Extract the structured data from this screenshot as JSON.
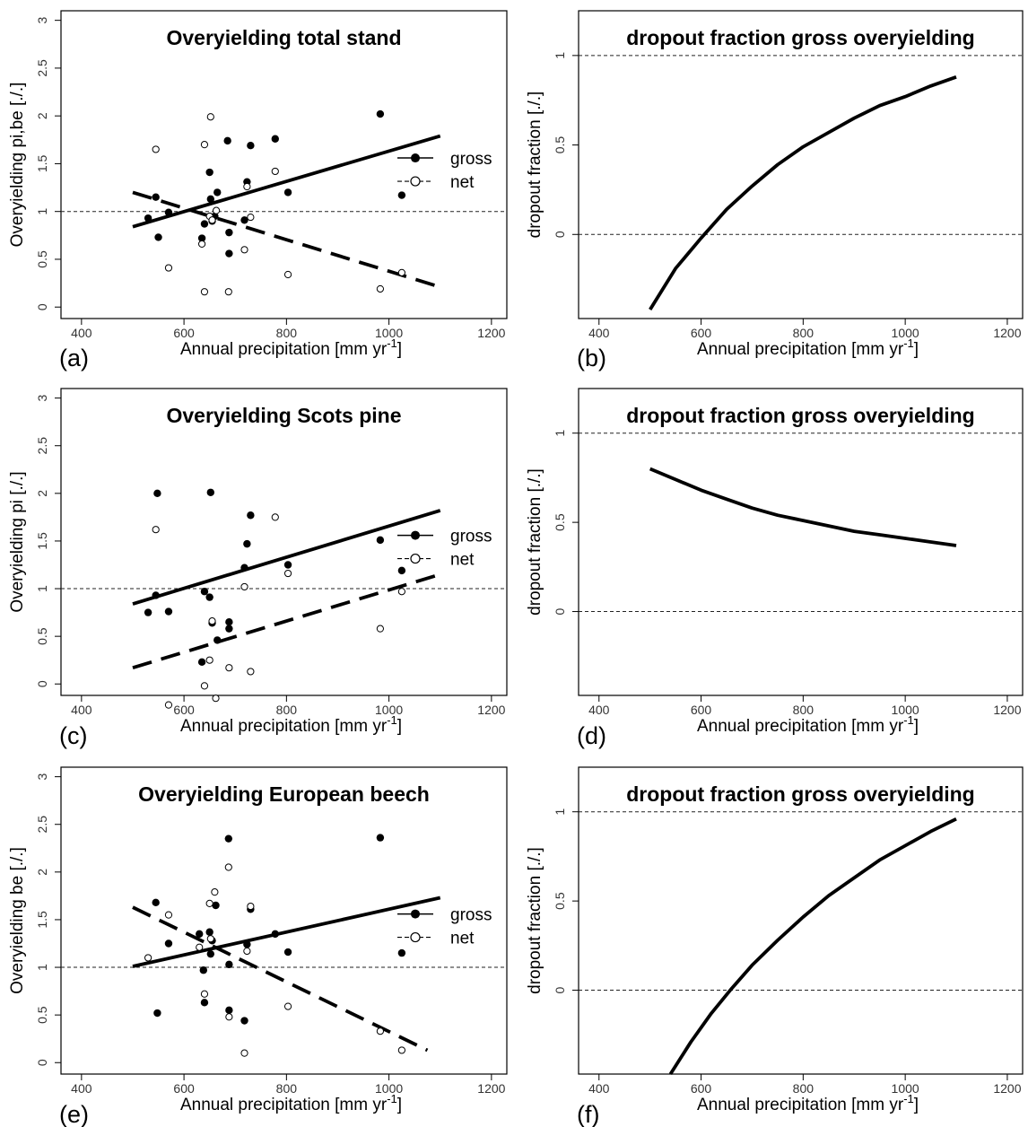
{
  "figure": {
    "xlabel": "Annual precipitation [mm yr",
    "xlabel_sup": "-1",
    "xlabel_end": "]",
    "legend": {
      "gross": "gross",
      "net": "net"
    }
  },
  "chart_data": [
    {
      "panel": "(a)",
      "type": "scatter",
      "title": "Overyielding total stand",
      "ylabel": "Overyielding pi,be [./.]",
      "xlim": [
        360,
        1230
      ],
      "ylim": [
        -0.12,
        3.1
      ],
      "xticks": [
        400,
        600,
        800,
        1000,
        1200
      ],
      "yticks": [
        0.0,
        0.5,
        1.0,
        1.5,
        2.0,
        2.5,
        3.0
      ],
      "reference_line": 1.0,
      "legend_position": "right",
      "series": [
        {
          "name": "gross",
          "marker": "filled-circle",
          "x": [
            530,
            545,
            550,
            570,
            635,
            640,
            650,
            652,
            655,
            660,
            665,
            685,
            688,
            688,
            718,
            723,
            730,
            778,
            803,
            983,
            1025
          ],
          "y": [
            0.93,
            1.15,
            0.73,
            0.99,
            0.72,
            0.87,
            1.41,
            1.13,
            0.9,
            0.95,
            1.2,
            1.74,
            0.56,
            0.78,
            0.91,
            1.31,
            1.69,
            1.76,
            1.2,
            2.02,
            1.17
          ]
        },
        {
          "name": "net",
          "marker": "open-circle",
          "x": [
            545,
            570,
            635,
            640,
            640,
            650,
            652,
            655,
            663,
            687,
            718,
            723,
            730,
            778,
            803,
            983,
            1025
          ],
          "y": [
            1.65,
            0.41,
            0.66,
            1.7,
            0.16,
            0.95,
            1.99,
            0.91,
            1.01,
            0.16,
            0.6,
            1.26,
            0.94,
            1.42,
            0.34,
            0.19,
            0.36
          ]
        }
      ],
      "fits": [
        {
          "name": "gross",
          "style": "solid",
          "x": [
            500,
            1100
          ],
          "y": [
            0.84,
            1.79
          ]
        },
        {
          "name": "net",
          "style": "dashed",
          "x": [
            500,
            1100
          ],
          "y": [
            1.2,
            0.21
          ]
        }
      ]
    },
    {
      "panel": "(b)",
      "type": "line",
      "title": "dropout fraction gross overyielding",
      "ylabel": "dropout fraction [./.]",
      "xlim": [
        360,
        1230
      ],
      "ylim": [
        -0.47,
        1.25
      ],
      "xticks": [
        400,
        600,
        800,
        1000,
        1200
      ],
      "yticks": [
        0.0,
        0.5,
        1.0
      ],
      "reference_lines": [
        0.0,
        1.0
      ],
      "curve": {
        "x": [
          500,
          550,
          600,
          650,
          700,
          750,
          800,
          850,
          900,
          950,
          1000,
          1050,
          1100
        ],
        "y": [
          -0.42,
          -0.19,
          -0.02,
          0.14,
          0.27,
          0.39,
          0.49,
          0.57,
          0.65,
          0.72,
          0.77,
          0.83,
          0.88
        ]
      }
    },
    {
      "panel": "(c)",
      "type": "scatter",
      "title": "Overyielding Scots pine",
      "ylabel": "Overyielding pi [./.]",
      "xlim": [
        360,
        1230
      ],
      "ylim": [
        -0.12,
        3.1
      ],
      "xticks": [
        400,
        600,
        800,
        1000,
        1200
      ],
      "yticks": [
        0.0,
        0.5,
        1.0,
        1.5,
        2.0,
        2.5,
        3.0
      ],
      "reference_line": 1.0,
      "legend_position": "right",
      "series": [
        {
          "name": "gross",
          "marker": "filled-circle",
          "x": [
            530,
            545,
            548,
            570,
            635,
            640,
            650,
            652,
            655,
            665,
            688,
            688,
            718,
            723,
            730,
            803,
            983,
            1025
          ],
          "y": [
            0.75,
            0.93,
            2.0,
            0.76,
            0.23,
            0.97,
            0.91,
            2.01,
            0.64,
            0.46,
            0.65,
            0.58,
            1.22,
            1.47,
            1.77,
            1.25,
            1.51,
            1.19
          ]
        },
        {
          "name": "net",
          "marker": "open-circle",
          "x": [
            545,
            570,
            640,
            650,
            655,
            662,
            688,
            718,
            730,
            778,
            803,
            983,
            1025
          ],
          "y": [
            1.62,
            -0.22,
            -0.02,
            0.25,
            0.66,
            -0.15,
            0.17,
            1.02,
            0.13,
            1.75,
            1.16,
            0.58,
            0.97
          ]
        }
      ],
      "fits": [
        {
          "name": "gross",
          "style": "solid",
          "x": [
            500,
            1100
          ],
          "y": [
            0.84,
            1.82
          ]
        },
        {
          "name": "net",
          "style": "dashed",
          "x": [
            500,
            1100
          ],
          "y": [
            0.17,
            1.15
          ]
        }
      ]
    },
    {
      "panel": "(d)",
      "type": "line",
      "title": "dropout fraction gross overyielding",
      "ylabel": "dropout fraction [./.]",
      "xlim": [
        360,
        1230
      ],
      "ylim": [
        -0.47,
        1.25
      ],
      "xticks": [
        400,
        600,
        800,
        1000,
        1200
      ],
      "yticks": [
        0.0,
        0.5,
        1.0
      ],
      "reference_lines": [
        0.0,
        1.0
      ],
      "curve": {
        "x": [
          500,
          550,
          600,
          650,
          700,
          750,
          800,
          850,
          900,
          950,
          1000,
          1050,
          1100
        ],
        "y": [
          0.8,
          0.74,
          0.68,
          0.63,
          0.58,
          0.54,
          0.51,
          0.48,
          0.45,
          0.43,
          0.41,
          0.39,
          0.37
        ]
      }
    },
    {
      "panel": "(e)",
      "type": "scatter",
      "title": "Overyielding European beech",
      "ylabel": "Overyielding be [./.]",
      "xlim": [
        360,
        1230
      ],
      "ylim": [
        -0.12,
        3.1
      ],
      "xticks": [
        400,
        600,
        800,
        1000,
        1200
      ],
      "yticks": [
        0.0,
        0.5,
        1.0,
        1.5,
        2.0,
        2.5,
        3.0
      ],
      "reference_line": 1.0,
      "legend_position": "right",
      "series": [
        {
          "name": "gross",
          "marker": "filled-circle",
          "x": [
            545,
            548,
            570,
            630,
            638,
            640,
            650,
            652,
            655,
            662,
            687,
            688,
            688,
            718,
            723,
            730,
            778,
            803,
            983,
            1025
          ],
          "y": [
            1.68,
            0.52,
            1.25,
            1.35,
            0.97,
            0.63,
            1.37,
            1.14,
            1.28,
            1.65,
            2.35,
            1.03,
            0.55,
            0.44,
            1.24,
            1.61,
            1.35,
            1.16,
            2.36,
            1.15
          ]
        },
        {
          "name": "net",
          "marker": "open-circle",
          "x": [
            530,
            570,
            630,
            640,
            650,
            652,
            660,
            687,
            688,
            718,
            723,
            730,
            803,
            983,
            1025
          ],
          "y": [
            1.1,
            1.55,
            1.21,
            0.72,
            1.67,
            1.3,
            1.79,
            2.05,
            0.48,
            0.1,
            1.17,
            1.64,
            0.59,
            0.33,
            0.13
          ]
        }
      ],
      "fits": [
        {
          "name": "gross",
          "style": "solid",
          "x": [
            500,
            1100
          ],
          "y": [
            1.01,
            1.73
          ]
        },
        {
          "name": "net",
          "style": "dashed",
          "x": [
            500,
            1075
          ],
          "y": [
            1.63,
            0.13
          ]
        }
      ]
    },
    {
      "panel": "(f)",
      "type": "line",
      "title": "dropout fraction gross overyielding",
      "ylabel": "dropout fraction [./.]",
      "xlim": [
        360,
        1230
      ],
      "ylim": [
        -0.47,
        1.25
      ],
      "xticks": [
        400,
        600,
        800,
        1000,
        1200
      ],
      "yticks": [
        0.0,
        0.5,
        1.0
      ],
      "reference_lines": [
        0.0,
        1.0
      ],
      "curve": {
        "x": [
          540,
          580,
          620,
          660,
          700,
          750,
          800,
          850,
          900,
          950,
          1000,
          1050,
          1100
        ],
        "y": [
          -0.47,
          -0.29,
          -0.13,
          0.01,
          0.14,
          0.28,
          0.41,
          0.53,
          0.63,
          0.73,
          0.81,
          0.89,
          0.96
        ]
      }
    }
  ]
}
